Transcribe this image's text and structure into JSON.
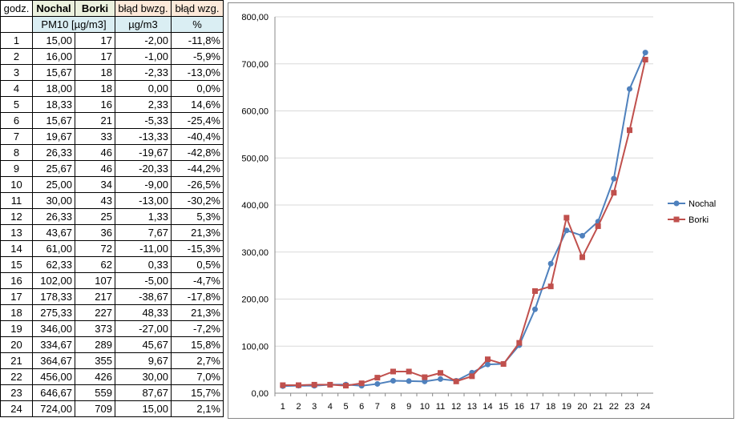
{
  "table": {
    "headers": [
      "godz.",
      "Nochal",
      "Borki",
      "błąd bwzg.",
      "błąd wzg."
    ],
    "units": [
      "PM10 [µg/m3]",
      "µg/m3",
      "%"
    ],
    "rows": [
      [
        "1",
        "15,00",
        "17",
        "-2,00",
        "-11,8%"
      ],
      [
        "2",
        "16,00",
        "17",
        "-1,00",
        "-5,9%"
      ],
      [
        "3",
        "15,67",
        "18",
        "-2,33",
        "-13,0%"
      ],
      [
        "4",
        "18,00",
        "18",
        "0,00",
        "0,0%"
      ],
      [
        "5",
        "18,33",
        "16",
        "2,33",
        "14,6%"
      ],
      [
        "6",
        "15,67",
        "21",
        "-5,33",
        "-25,4%"
      ],
      [
        "7",
        "19,67",
        "33",
        "-13,33",
        "-40,4%"
      ],
      [
        "8",
        "26,33",
        "46",
        "-19,67",
        "-42,8%"
      ],
      [
        "9",
        "25,67",
        "46",
        "-20,33",
        "-44,2%"
      ],
      [
        "10",
        "25,00",
        "34",
        "-9,00",
        "-26,5%"
      ],
      [
        "11",
        "30,00",
        "43",
        "-13,00",
        "-30,2%"
      ],
      [
        "12",
        "26,33",
        "25",
        "1,33",
        "5,3%"
      ],
      [
        "13",
        "43,67",
        "36",
        "7,67",
        "21,3%"
      ],
      [
        "14",
        "61,00",
        "72",
        "-11,00",
        "-15,3%"
      ],
      [
        "15",
        "62,33",
        "62",
        "0,33",
        "0,5%"
      ],
      [
        "16",
        "102,00",
        "107",
        "-5,00",
        "-4,7%"
      ],
      [
        "17",
        "178,33",
        "217",
        "-38,67",
        "-17,8%"
      ],
      [
        "18",
        "275,33",
        "227",
        "48,33",
        "21,3%"
      ],
      [
        "19",
        "346,00",
        "373",
        "-27,00",
        "-7,2%"
      ],
      [
        "20",
        "334,67",
        "289",
        "45,67",
        "15,8%"
      ],
      [
        "21",
        "364,67",
        "355",
        "9,67",
        "2,7%"
      ],
      [
        "22",
        "456,00",
        "426",
        "30,00",
        "7,0%"
      ],
      [
        "23",
        "646,67",
        "559",
        "87,67",
        "15,7%"
      ],
      [
        "24",
        "724,00",
        "709",
        "15,00",
        "2,1%"
      ]
    ]
  },
  "chart_data": {
    "type": "line",
    "categories": [
      "1",
      "2",
      "3",
      "4",
      "5",
      "6",
      "7",
      "8",
      "9",
      "10",
      "11",
      "12",
      "13",
      "14",
      "15",
      "16",
      "17",
      "18",
      "19",
      "20",
      "21",
      "22",
      "23",
      "24"
    ],
    "ylim": [
      0,
      800
    ],
    "yticks": [
      "0,00",
      "100,00",
      "200,00",
      "300,00",
      "400,00",
      "500,00",
      "600,00",
      "700,00",
      "800,00"
    ],
    "grid": true,
    "legend": "right",
    "series": [
      {
        "name": "Nochal",
        "color": "#4f81bd",
        "marker": "circle",
        "values": [
          15,
          16,
          15.67,
          18,
          18.33,
          15.67,
          19.67,
          26.33,
          25.67,
          25,
          30,
          26.33,
          43.67,
          61,
          62.33,
          102,
          178.33,
          275.33,
          346,
          334.67,
          364.67,
          456,
          646.67,
          724
        ]
      },
      {
        "name": "Borki",
        "color": "#c0504d",
        "marker": "square",
        "values": [
          17,
          17,
          18,
          18,
          16,
          21,
          33,
          46,
          46,
          34,
          43,
          25,
          36,
          72,
          62,
          107,
          217,
          227,
          373,
          289,
          355,
          426,
          559,
          709
        ]
      }
    ]
  }
}
